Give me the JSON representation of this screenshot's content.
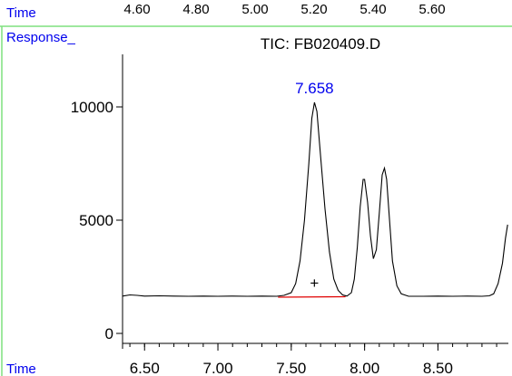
{
  "top_strip": {
    "time_label": "Time",
    "ticks": [
      "4.60",
      "4.80",
      "5.00",
      "5.20",
      "5.40",
      "5.60"
    ]
  },
  "panel": {
    "response_label": "Response_",
    "time_label": "Time"
  },
  "colors": {
    "frame_green": "#7fe07f",
    "label_blue": "#0000ee",
    "trace": "#000000",
    "baseline": "#e00000"
  },
  "chart_data": {
    "type": "line",
    "title": "TIC: FB020409.D",
    "xlabel": "Time",
    "ylabel": "Response_",
    "xlim": [
      6.35,
      8.98
    ],
    "ylim": [
      0,
      12000
    ],
    "x_ticks": [
      "6.50",
      "7.00",
      "7.50",
      "8.00",
      "8.50"
    ],
    "y_ticks": [
      "0",
      "5000",
      "10000"
    ],
    "grid": false,
    "peak_annotation": {
      "x": 7.658,
      "y": 10200,
      "label": "7.658"
    },
    "integration_baseline": {
      "x": [
        7.41,
        7.87
      ],
      "y": [
        1600,
        1620
      ]
    },
    "centroid_marker": {
      "x": 7.658,
      "y": 2000,
      "label": "+"
    },
    "series": [
      {
        "values": [
          [
            6.35,
            1650
          ],
          [
            6.4,
            1700
          ],
          [
            6.45,
            1680
          ],
          [
            6.5,
            1650
          ],
          [
            6.6,
            1660
          ],
          [
            6.7,
            1650
          ],
          [
            6.8,
            1640
          ],
          [
            6.9,
            1650
          ],
          [
            7.0,
            1640
          ],
          [
            7.1,
            1650
          ],
          [
            7.2,
            1640
          ],
          [
            7.3,
            1650
          ],
          [
            7.4,
            1640
          ],
          [
            7.45,
            1680
          ],
          [
            7.5,
            1800
          ],
          [
            7.53,
            2200
          ],
          [
            7.56,
            3200
          ],
          [
            7.59,
            5000
          ],
          [
            7.62,
            7500
          ],
          [
            7.64,
            9500
          ],
          [
            7.658,
            10200
          ],
          [
            7.675,
            9800
          ],
          [
            7.7,
            7800
          ],
          [
            7.73,
            5500
          ],
          [
            7.76,
            3600
          ],
          [
            7.79,
            2400
          ],
          [
            7.82,
            1900
          ],
          [
            7.85,
            1700
          ],
          [
            7.88,
            1650
          ],
          [
            7.91,
            1800
          ],
          [
            7.93,
            2400
          ],
          [
            7.95,
            3800
          ],
          [
            7.97,
            5600
          ],
          [
            7.99,
            6800
          ],
          [
            8.0,
            6800
          ],
          [
            8.02,
            5800
          ],
          [
            8.04,
            4300
          ],
          [
            8.06,
            3300
          ],
          [
            8.08,
            3700
          ],
          [
            8.1,
            5300
          ],
          [
            8.12,
            7000
          ],
          [
            8.135,
            7300
          ],
          [
            8.15,
            6800
          ],
          [
            8.17,
            5000
          ],
          [
            8.19,
            3200
          ],
          [
            8.22,
            2100
          ],
          [
            8.25,
            1750
          ],
          [
            8.3,
            1640
          ],
          [
            8.4,
            1640
          ],
          [
            8.5,
            1650
          ],
          [
            8.6,
            1640
          ],
          [
            8.7,
            1650
          ],
          [
            8.8,
            1640
          ],
          [
            8.85,
            1660
          ],
          [
            8.88,
            1750
          ],
          [
            8.91,
            2200
          ],
          [
            8.94,
            3100
          ],
          [
            8.96,
            4200
          ],
          [
            8.975,
            4800
          ]
        ]
      }
    ]
  }
}
